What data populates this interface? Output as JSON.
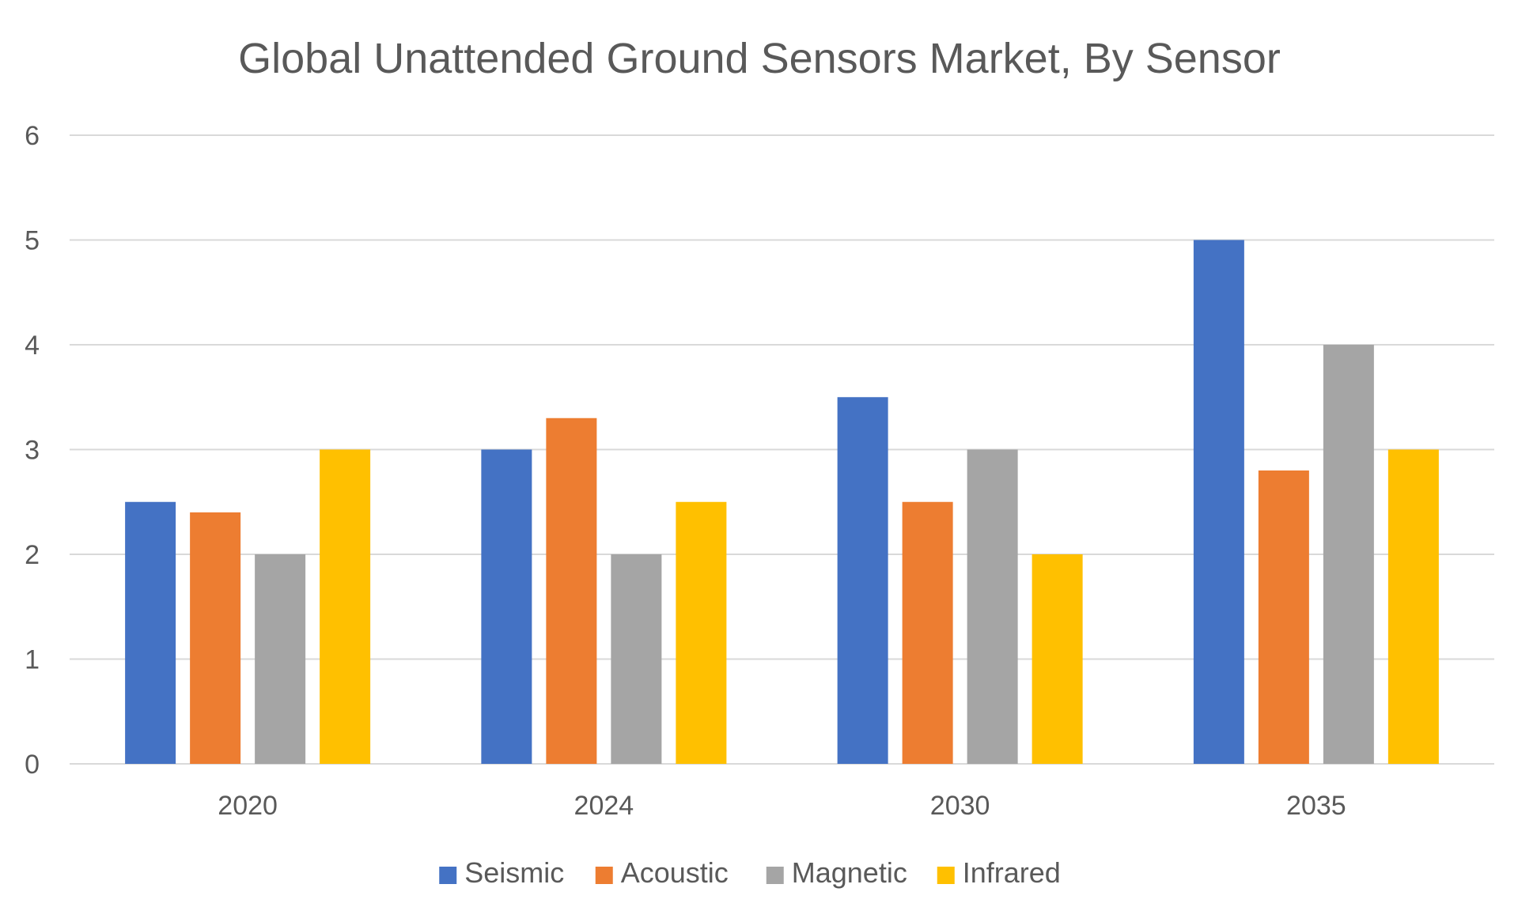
{
  "chart_data": {
    "type": "bar",
    "title": "Global Unattended Ground Sensors Market, By Sensor",
    "xlabel": "",
    "ylabel": "",
    "categories": [
      "2020",
      "2024",
      "2030",
      "2035"
    ],
    "series": [
      {
        "name": "Seismic",
        "color": "#4472c4",
        "values": [
          2.5,
          3.0,
          3.5,
          5.0
        ]
      },
      {
        "name": "Acoustic",
        "color": "#ed7d31",
        "values": [
          2.4,
          3.3,
          2.5,
          2.8
        ]
      },
      {
        "name": "Magnetic",
        "color": "#a5a5a5",
        "values": [
          2.0,
          2.0,
          3.0,
          4.0
        ]
      },
      {
        "name": "Infrared",
        "color": "#ffc000",
        "values": [
          3.0,
          2.5,
          2.0,
          3.0
        ]
      }
    ],
    "ylim": [
      0,
      6
    ],
    "yticks": [
      "0",
      "1",
      "2",
      "3",
      "4",
      "5",
      "6"
    ],
    "grid": true,
    "legend_position": "bottom"
  }
}
